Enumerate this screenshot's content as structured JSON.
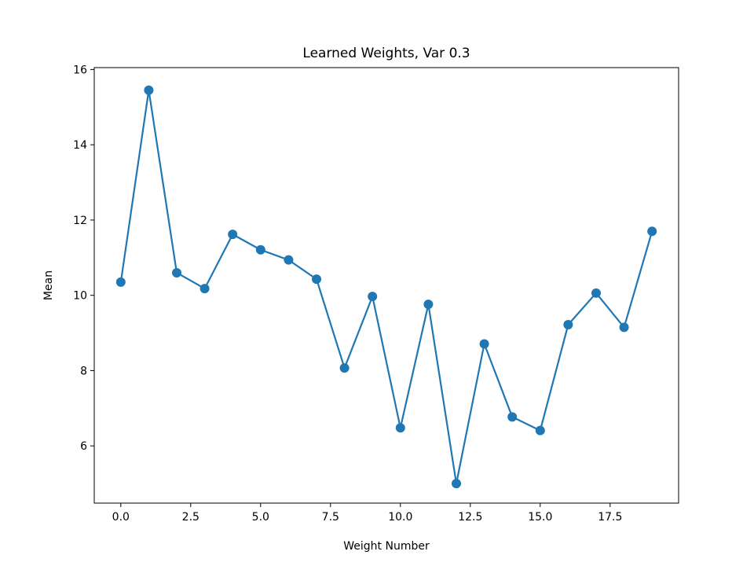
{
  "chart_data": {
    "type": "line",
    "title": "Learned Weights, Var 0.3",
    "xlabel": "Weight Number",
    "ylabel": "Mean",
    "xlim": [
      -0.95,
      19.95
    ],
    "ylim": [
      4.48,
      16.05
    ],
    "xticks": [
      0,
      2.5,
      5,
      7.5,
      10,
      12.5,
      15,
      17.5
    ],
    "xtick_labels": [
      "0.0",
      "2.5",
      "5.0",
      "7.5",
      "10.0",
      "12.5",
      "15.0",
      "17.5"
    ],
    "yticks": [
      6,
      8,
      10,
      12,
      14,
      16
    ],
    "ytick_labels": [
      "6",
      "8",
      "10",
      "12",
      "14",
      "16"
    ],
    "grid": false,
    "series": [
      {
        "color": "#1f77b4",
        "marker": "circle",
        "x": [
          0,
          1,
          2,
          3,
          4,
          5,
          6,
          7,
          8,
          9,
          10,
          11,
          12,
          13,
          14,
          15,
          16,
          17,
          18,
          19
        ],
        "y": [
          10.35,
          15.45,
          10.6,
          10.18,
          11.62,
          11.21,
          10.94,
          10.43,
          8.07,
          9.97,
          6.48,
          9.76,
          5.0,
          8.71,
          6.77,
          6.41,
          9.22,
          10.06,
          9.15,
          11.7
        ]
      }
    ]
  }
}
